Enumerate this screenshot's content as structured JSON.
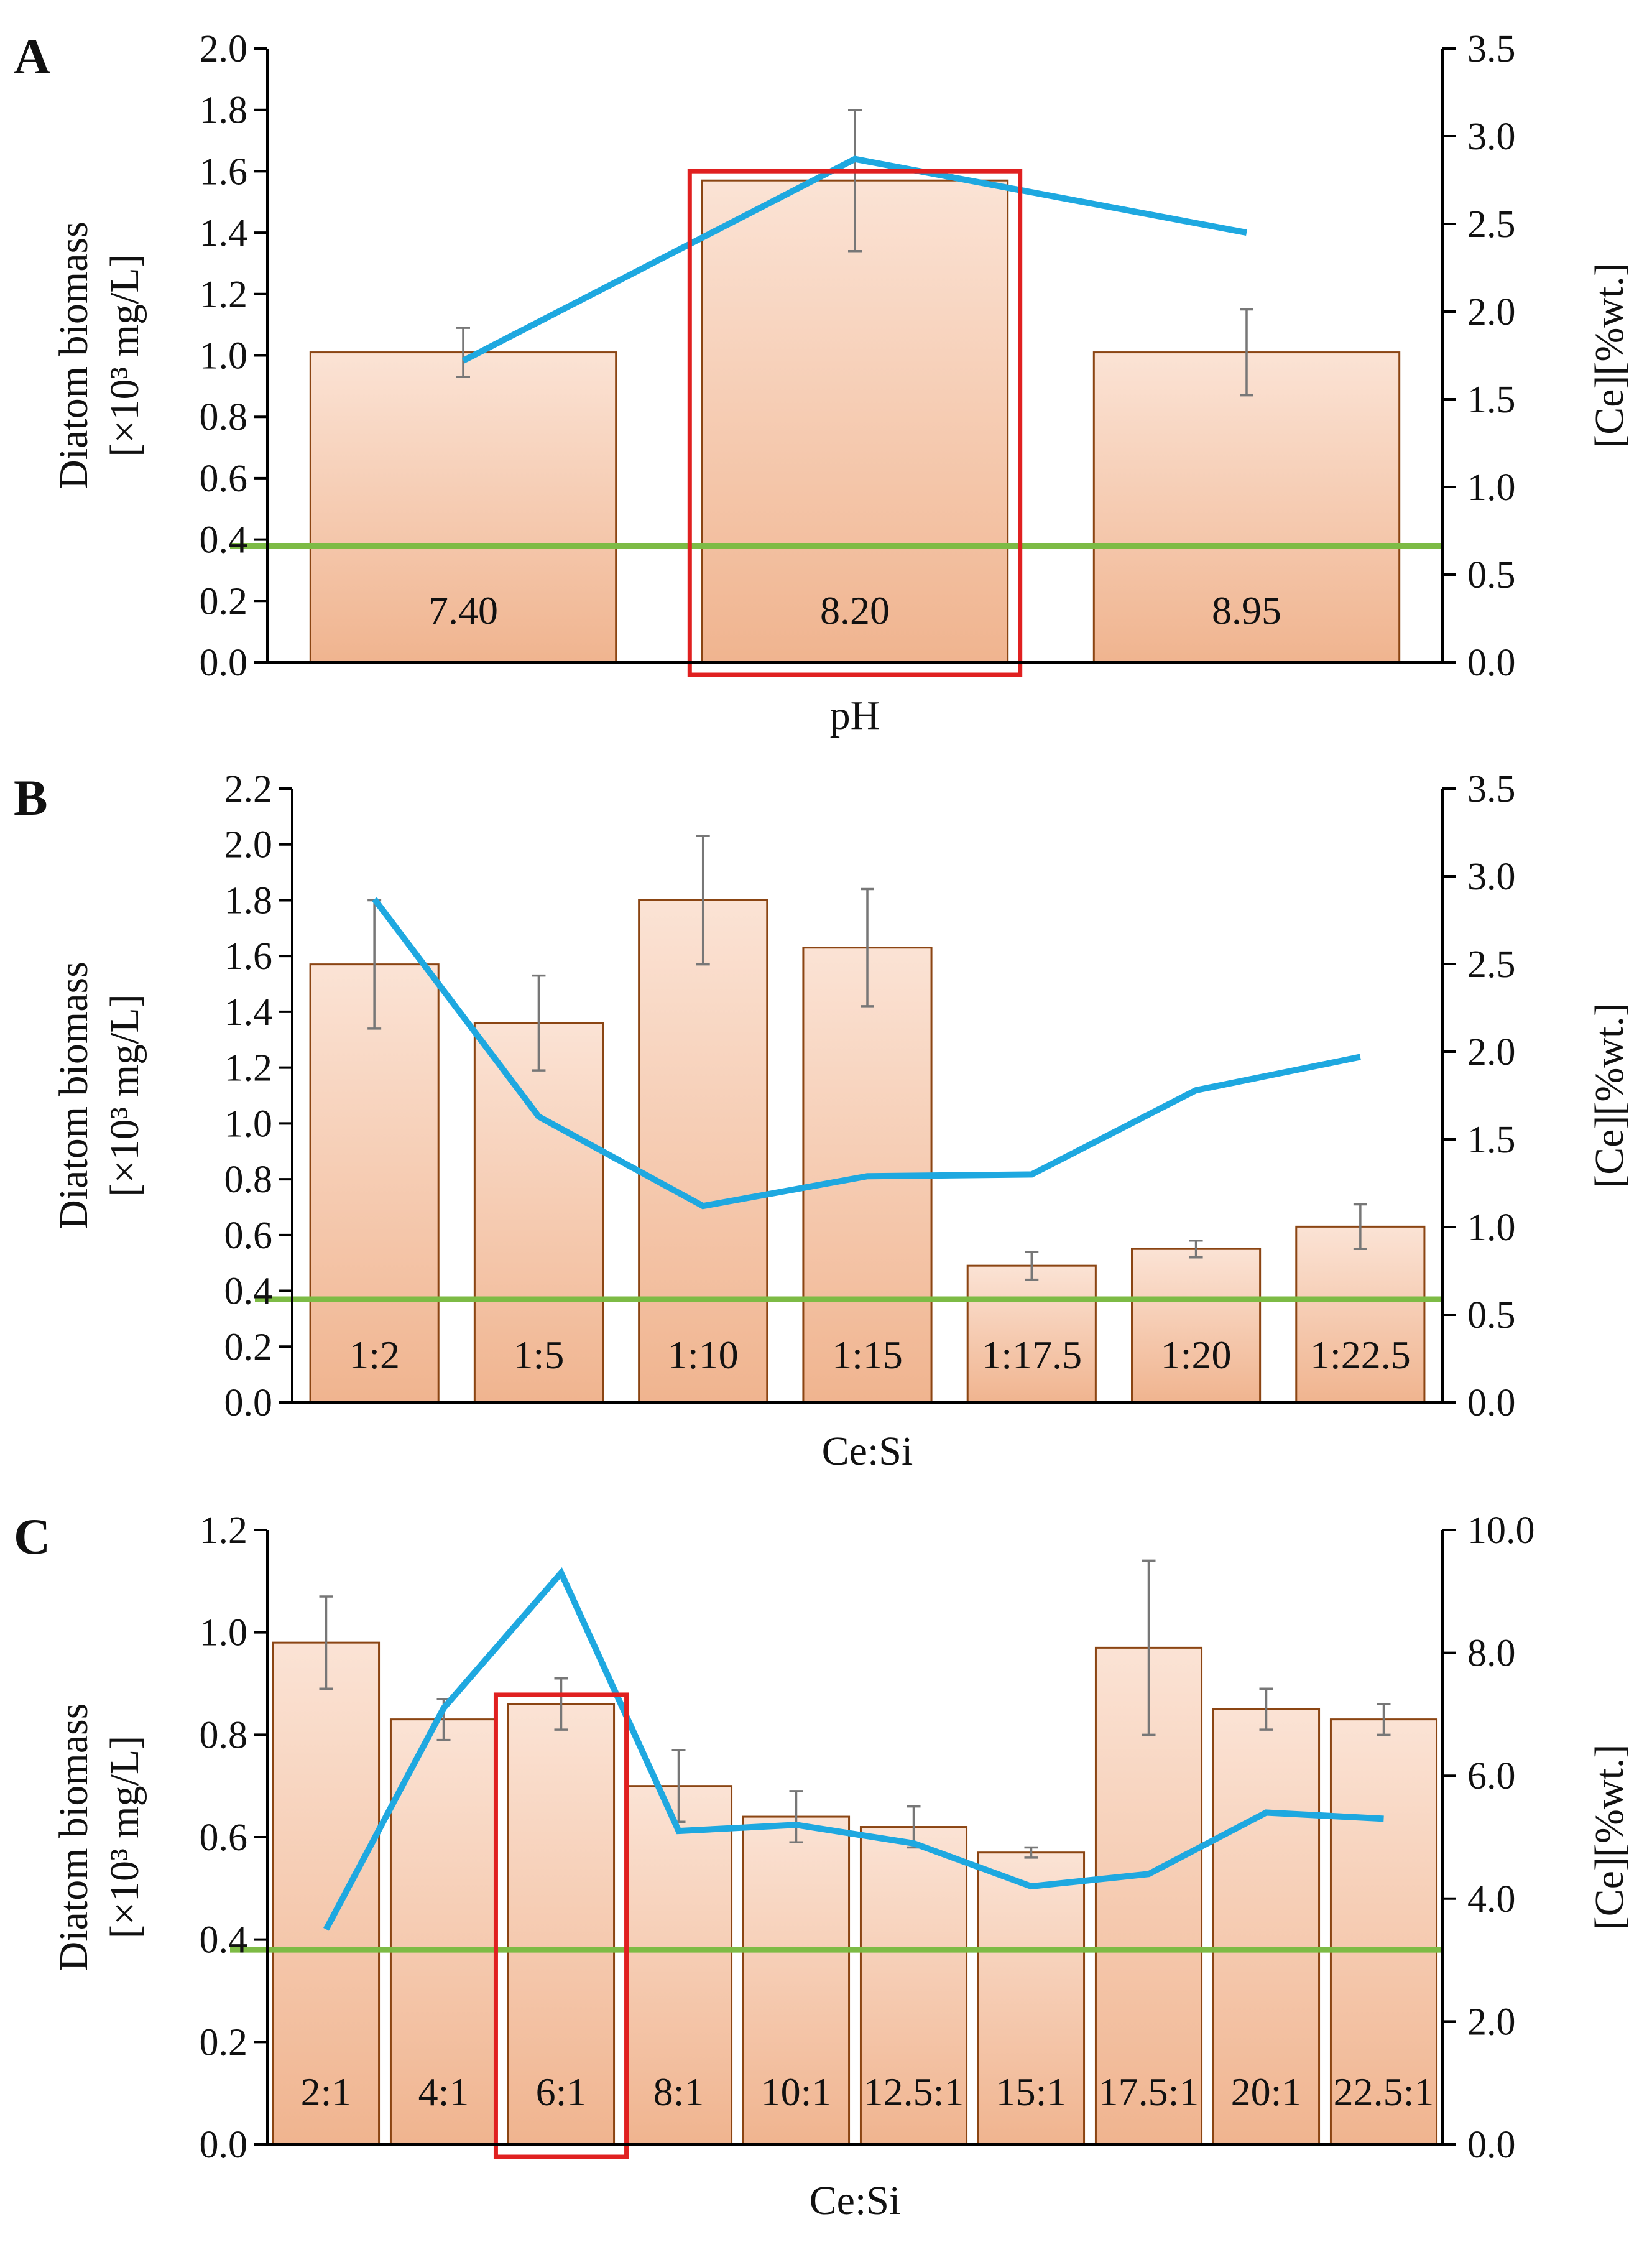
{
  "chart_data": [
    {
      "panel": "A",
      "type": "bar",
      "xlabel": "pH",
      "ylabel_lines": [
        "Diatom biomass",
        "[×10³ mg/L]"
      ],
      "y2label": "[Ce][%wt.]",
      "ylim": [
        0,
        2.0
      ],
      "y2lim": [
        0,
        3.5
      ],
      "y_ticks": [
        "0.0",
        "0.2",
        "0.4",
        "0.6",
        "0.8",
        "1.0",
        "1.2",
        "1.4",
        "1.6",
        "1.8",
        "2.0"
      ],
      "y2_ticks": [
        "0.0",
        "0.5",
        "1.0",
        "1.5",
        "2.0",
        "2.5",
        "3.0",
        "3.5"
      ],
      "categories": [
        "7.40",
        "8.20",
        "8.95"
      ],
      "series": [
        {
          "name": "Diatom biomass",
          "kind": "bar",
          "axis": "left",
          "values": [
            1.01,
            1.57,
            1.01
          ],
          "errors": [
            0.08,
            0.23,
            0.14
          ]
        },
        {
          "name": "[Ce]",
          "kind": "line",
          "axis": "right",
          "values": [
            1.72,
            2.87,
            2.45
          ]
        }
      ],
      "reference_line": {
        "axis": "left",
        "value": 0.38
      },
      "highlight_index": 1,
      "colors": {
        "bar_fill_top": "#fbe3d5",
        "bar_fill_bottom": "#f0b48f",
        "bar_stroke": "#8b4513",
        "line": "#1ea8e0",
        "reference": "#7dbb45",
        "highlight": "#e02020",
        "error": "#777777"
      }
    },
    {
      "panel": "B",
      "type": "bar",
      "xlabel": "Ce:Si",
      "ylabel_lines": [
        "Diatom biomass",
        "[×10³ mg/L]"
      ],
      "y2label": "[Ce][%wt.]",
      "ylim": [
        0,
        2.2
      ],
      "y2lim": [
        0,
        3.5
      ],
      "y_ticks": [
        "0.0",
        "0.2",
        "0.4",
        "0.6",
        "0.8",
        "1.0",
        "1.2",
        "1.4",
        "1.6",
        "1.8",
        "2.0",
        "2.2"
      ],
      "y2_ticks": [
        "0.0",
        "0.5",
        "1.0",
        "1.5",
        "2.0",
        "2.5",
        "3.0",
        "3.5"
      ],
      "categories": [
        "1:2",
        "1:5",
        "1:10",
        "1:15",
        "1:17.5",
        "1:20",
        "1:22.5"
      ],
      "series": [
        {
          "name": "Diatom biomass",
          "kind": "bar",
          "axis": "left",
          "values": [
            1.57,
            1.36,
            1.8,
            1.63,
            0.49,
            0.55,
            0.63
          ],
          "errors": [
            0.23,
            0.17,
            0.23,
            0.21,
            0.05,
            0.03,
            0.08
          ]
        },
        {
          "name": "[Ce]",
          "kind": "line",
          "axis": "right",
          "values": [
            2.87,
            1.63,
            1.12,
            1.29,
            1.3,
            1.78,
            1.97
          ]
        }
      ],
      "reference_line": {
        "axis": "left",
        "value": 0.37
      },
      "highlight_index": null,
      "colors": {
        "bar_fill_top": "#fbe3d5",
        "bar_fill_bottom": "#f0b48f",
        "bar_stroke": "#8b4513",
        "line": "#1ea8e0",
        "reference": "#7dbb45",
        "highlight": "#e02020",
        "error": "#777777"
      }
    },
    {
      "panel": "C",
      "type": "bar",
      "xlabel": "Ce:Si",
      "ylabel_lines": [
        "Diatom biomass",
        "[×10³ mg/L]"
      ],
      "y2label": "[Ce][%wt.]",
      "ylim": [
        0,
        1.2
      ],
      "y2lim": [
        0,
        10.0
      ],
      "y_ticks": [
        "0.0",
        "0.2",
        "0.4",
        "0.6",
        "0.8",
        "1.0",
        "1.2"
      ],
      "y2_ticks": [
        "0.0",
        "2.0",
        "4.0",
        "6.0",
        "8.0",
        "10.0"
      ],
      "categories": [
        "2:1",
        "4:1",
        "6:1",
        "8:1",
        "10:1",
        "12.5:1",
        "15:1",
        "17.5:1",
        "20:1",
        "22.5:1"
      ],
      "series": [
        {
          "name": "Diatom biomass",
          "kind": "bar",
          "axis": "left",
          "values": [
            0.98,
            0.83,
            0.86,
            0.7,
            0.64,
            0.62,
            0.57,
            0.97,
            0.85,
            0.83
          ],
          "errors": [
            0.09,
            0.04,
            0.05,
            0.07,
            0.05,
            0.04,
            0.01,
            0.17,
            0.04,
            0.03
          ]
        },
        {
          "name": "[Ce]",
          "kind": "line",
          "axis": "right",
          "values": [
            3.5,
            7.1,
            9.3,
            5.1,
            5.2,
            4.9,
            4.2,
            4.4,
            5.4,
            5.3
          ]
        }
      ],
      "reference_line": {
        "axis": "left",
        "value": 0.38
      },
      "highlight_index": 2,
      "colors": {
        "bar_fill_top": "#fbe3d5",
        "bar_fill_bottom": "#f0b48f",
        "bar_stroke": "#8b4513",
        "line": "#1ea8e0",
        "reference": "#7dbb45",
        "highlight": "#e02020",
        "error": "#777777"
      }
    }
  ]
}
